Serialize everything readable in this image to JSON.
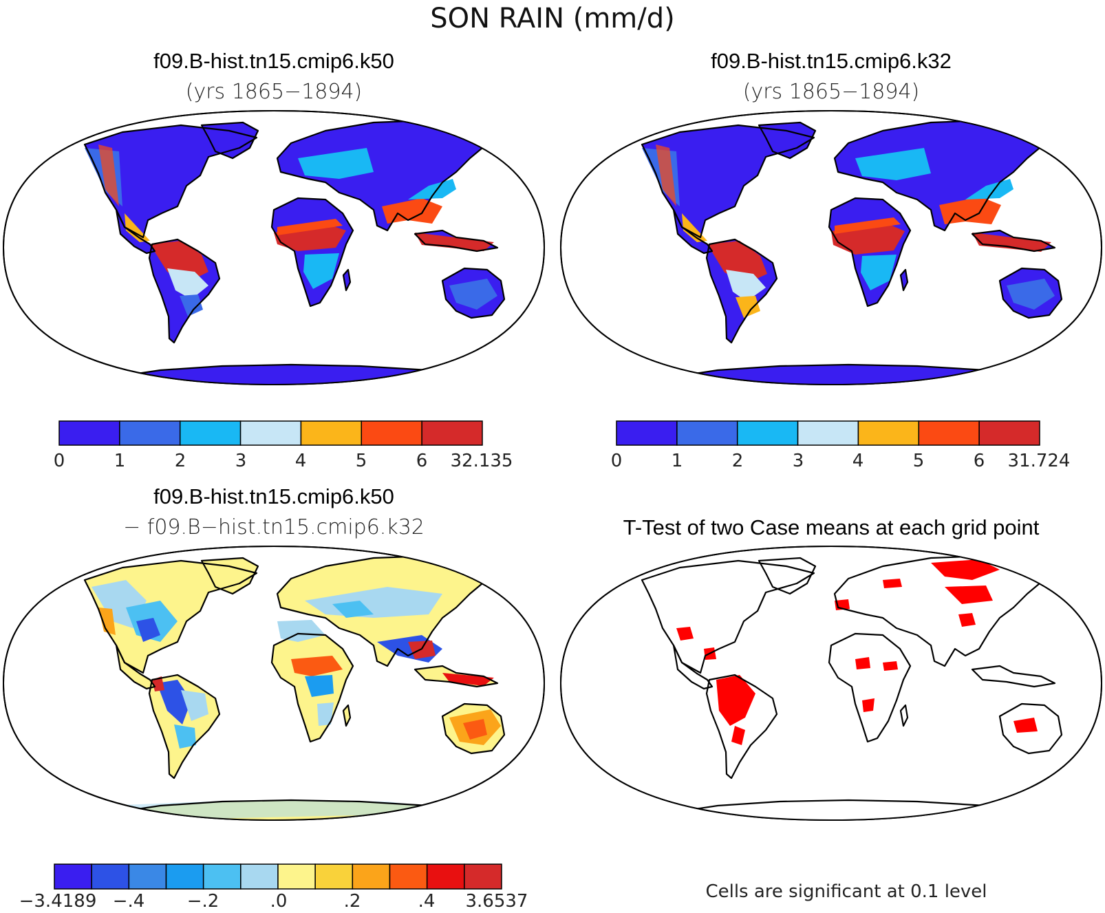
{
  "figure": {
    "title": "SON RAIN (mm/d)"
  },
  "panels": {
    "top_left": {
      "title": "f09.B-hist.tn15.cmip6.k50",
      "subtitle": "(yrs 1865−1894)"
    },
    "top_right": {
      "title": "f09.B-hist.tn15.cmip6.k32",
      "subtitle": "(yrs 1865−1894)"
    },
    "bottom_left": {
      "title": "f09.B-hist.tn15.cmip6.k50",
      "subtitle": "− f09.B−hist.tn15.cmip6.k32"
    },
    "bottom_right": {
      "title": "T-Test of two Case means at each grid point",
      "note": "Cells are significant at 0.1 level"
    }
  },
  "colorbars": {
    "top_left": {
      "colors": [
        "#3a1ef0",
        "#3a6ae8",
        "#19b8f4",
        "#c7e6f6",
        "#fbb51a",
        "#fb4a13",
        "#d52a2a"
      ],
      "labels": [
        "0",
        "1",
        "2",
        "3",
        "4",
        "5",
        "6",
        "32.135"
      ]
    },
    "top_right": {
      "colors": [
        "#3a1ef0",
        "#3a6ae8",
        "#19b8f4",
        "#c7e6f6",
        "#fbb51a",
        "#fb4a13",
        "#d52a2a"
      ],
      "labels": [
        "0",
        "1",
        "2",
        "3",
        "4",
        "5",
        "6",
        "31.724"
      ]
    },
    "bottom_left": {
      "colors": [
        "#3a1ef0",
        "#2d52e6",
        "#3a88e6",
        "#1b9cf0",
        "#4cc0f2",
        "#a8d8f0",
        "#fdf48c",
        "#f9d23a",
        "#fba41a",
        "#fb5a12",
        "#e81010",
        "#d52a2a"
      ],
      "labels": [
        "−3.4189",
        "−.4",
        "−.2",
        ".0",
        ".2",
        ".4",
        "3.6537"
      ]
    }
  },
  "map_colors": {
    "ocean": "#ffffff",
    "significant": "#ff0000",
    "dry": "#3a1ef0",
    "wet": "#d52a2a"
  }
}
